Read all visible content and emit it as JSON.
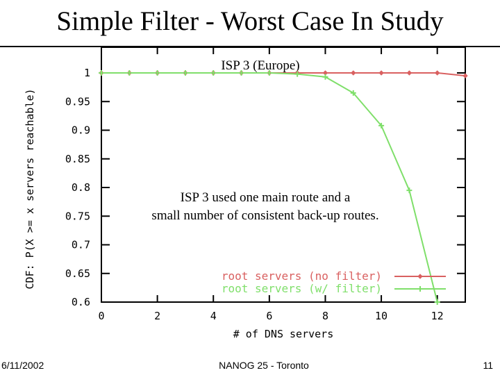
{
  "slide": {
    "title": "Simple Filter - Worst Case In Study",
    "footer_date": "6/11/2002",
    "footer_center": "NANOG 25 - Toronto",
    "page_number": "11"
  },
  "chart_data": {
    "type": "line",
    "title": "ISP 3 (Europe)",
    "xlabel": "# of DNS servers",
    "ylabel": "CDF: P(X >= x servers reachable)",
    "xlim": [
      0,
      13
    ],
    "ylim": [
      0.6,
      1.0
    ],
    "x_ticks": [
      "0",
      "2",
      "4",
      "6",
      "8",
      "10",
      "12"
    ],
    "y_ticks": [
      "1",
      "0.95",
      "0.9",
      "0.85",
      "0.8",
      "0.75",
      "0.7",
      "0.65",
      "0.6"
    ],
    "annotation": "ISP 3 used one main route and a small number of consistent back-up routes.",
    "legend_position": "bottom-right",
    "series": [
      {
        "name": "root servers (no filter)",
        "color": "#d96060",
        "marker": "diamond",
        "x": [
          0,
          1,
          2,
          3,
          4,
          5,
          6,
          7,
          8,
          9,
          10,
          11,
          12,
          13
        ],
        "y": [
          1,
          1,
          1,
          1,
          1,
          1,
          1,
          1,
          1,
          1,
          1,
          1,
          1,
          0.995
        ]
      },
      {
        "name": "root servers (w/ filter)",
        "color": "#7fdf6a",
        "marker": "plus",
        "x": [
          0,
          1,
          2,
          3,
          4,
          5,
          6,
          7,
          8,
          9,
          10,
          11,
          12
        ],
        "y": [
          1,
          1,
          1,
          1,
          1,
          1,
          1,
          0.998,
          0.993,
          0.965,
          0.908,
          0.795,
          0.6
        ]
      }
    ]
  }
}
